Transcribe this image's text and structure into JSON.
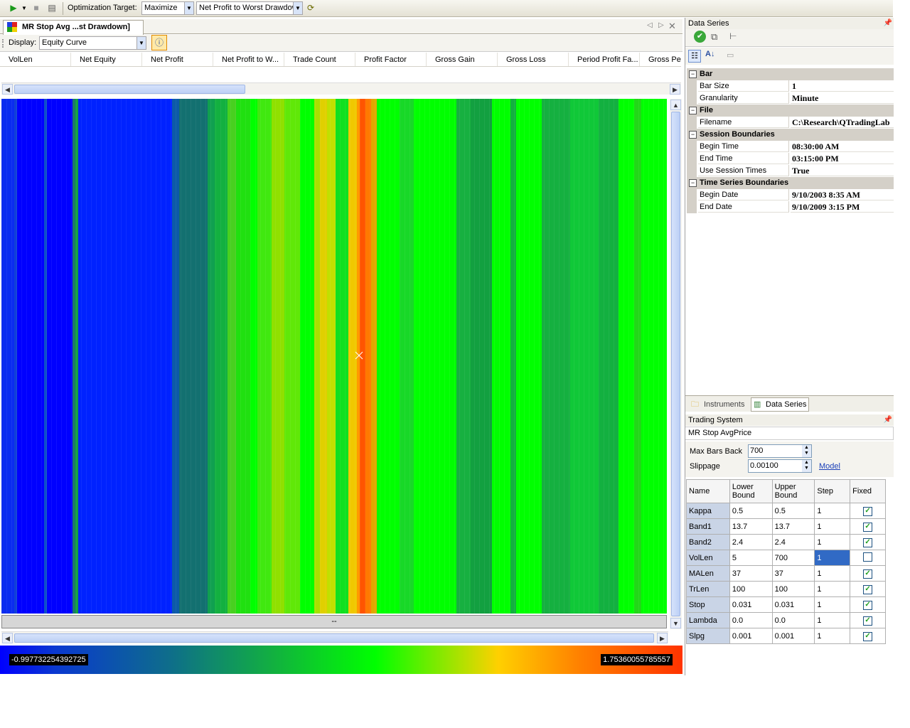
{
  "toolbar": {
    "optimization_target_label": "Optimization Target:",
    "direction_value": "Maximize",
    "metric_value": "Net Profit to Worst Drawdown"
  },
  "document_tab": {
    "title": "MR Stop Avg ...st Drawdown]"
  },
  "display": {
    "label": "Display:",
    "value": "Equity Curve"
  },
  "columns": [
    "VolLen",
    "Net Equity",
    "Net Profit",
    "Net Profit to W...",
    "Trade Count",
    "Profit Factor",
    "Gross Gain",
    "Gross Loss",
    "Period Profit Fa...",
    "Gross Per"
  ],
  "heatmap": {
    "status_text": "--",
    "legend_min": "-0.997732254392725",
    "legend_max": "1.75360055785557",
    "colors": {
      "low": "#0000ff",
      "mid": "#00ff00",
      "high": "#ff3300"
    }
  },
  "data_series_panel": {
    "title": "Data Series",
    "categories": [
      {
        "name": "Bar",
        "rows": [
          {
            "name": "Bar Size",
            "value": "1"
          },
          {
            "name": "Granularity",
            "value": "Minute"
          }
        ]
      },
      {
        "name": "File",
        "rows": [
          {
            "name": "Filename",
            "value": "C:\\Research\\QTradingLab"
          }
        ]
      },
      {
        "name": "Session Boundaries",
        "rows": [
          {
            "name": "Begin Time",
            "value": "08:30:00 AM"
          },
          {
            "name": "End Time",
            "value": "03:15:00 PM"
          },
          {
            "name": "Use Session Times",
            "value": "True"
          }
        ]
      },
      {
        "name": "Time Series Boundaries",
        "rows": [
          {
            "name": "Begin Date",
            "value": "9/10/2003 8:35 AM"
          },
          {
            "name": "End Date",
            "value": "9/10/2009 3:15 PM"
          }
        ]
      }
    ],
    "tabs": [
      "Instruments",
      "Data Series"
    ]
  },
  "trading_system_panel": {
    "title": "Trading System",
    "system_name": "MR Stop AvgPrice",
    "max_bars_back_label": "Max Bars Back",
    "max_bars_back_value": "700",
    "slippage_label": "Slippage",
    "slippage_value": "0.00100",
    "model_link": "Model",
    "grid_headers": {
      "name": "Name",
      "lower": "Lower Bound",
      "upper": "Upper Bound",
      "step": "Step",
      "fixed": "Fixed"
    },
    "parameters": [
      {
        "name": "Kappa",
        "lower": "0.5",
        "upper": "0.5",
        "step": "1",
        "fixed": true
      },
      {
        "name": "Band1",
        "lower": "13.7",
        "upper": "13.7",
        "step": "1",
        "fixed": true
      },
      {
        "name": "Band2",
        "lower": "2.4",
        "upper": "2.4",
        "step": "1",
        "fixed": true
      },
      {
        "name": "VolLen",
        "lower": "5",
        "upper": "700",
        "step": "1",
        "fixed": false
      },
      {
        "name": "MALen",
        "lower": "37",
        "upper": "37",
        "step": "1",
        "fixed": true
      },
      {
        "name": "TrLen",
        "lower": "100",
        "upper": "100",
        "step": "1",
        "fixed": true
      },
      {
        "name": "Stop",
        "lower": "0.031",
        "upper": "0.031",
        "step": "1",
        "fixed": true
      },
      {
        "name": "Lambda",
        "lower": "0.0",
        "upper": "0.0",
        "step": "1",
        "fixed": true
      },
      {
        "name": "Slpg",
        "lower": "0.001",
        "upper": "0.001",
        "step": "1",
        "fixed": true
      }
    ]
  }
}
